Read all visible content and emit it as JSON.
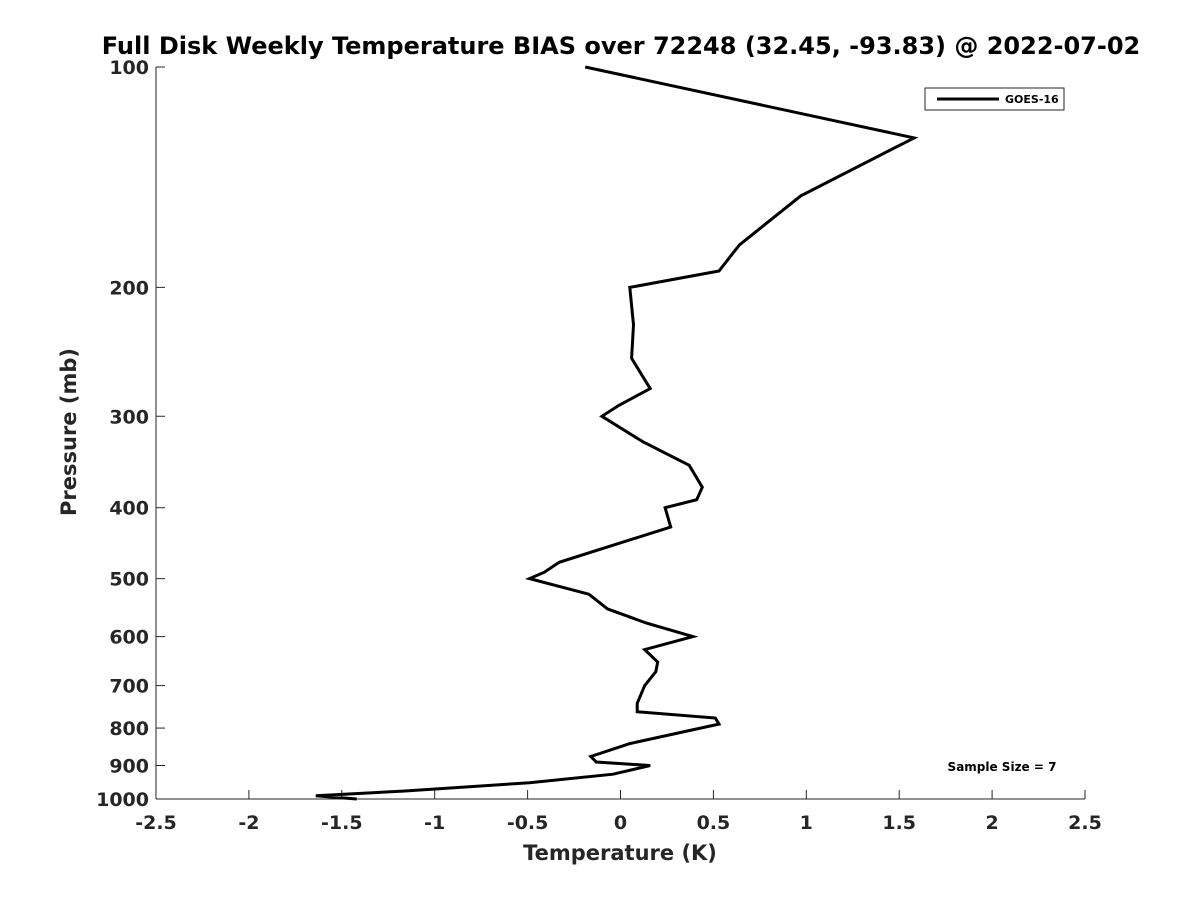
{
  "chart_data": {
    "type": "line",
    "title": "Full Disk Weekly Temperature BIAS over 72248 (32.45, -93.83) @ 2022-07-02",
    "xlabel": "Temperature (K)",
    "ylabel": "Pressure (mb)",
    "xlim": [
      -2.5,
      2.5
    ],
    "ylim": [
      100,
      1000
    ],
    "yscale": "log",
    "y_reversed": true,
    "grid": false,
    "legend_position": "top-right",
    "xticks": [
      {
        "value": -2.5,
        "label": "-2.5"
      },
      {
        "value": -2,
        "label": "-2"
      },
      {
        "value": -1.5,
        "label": "-1.5"
      },
      {
        "value": -1,
        "label": "-1"
      },
      {
        "value": -0.5,
        "label": "-0.5"
      },
      {
        "value": 0,
        "label": "0"
      },
      {
        "value": 0.5,
        "label": "0.5"
      },
      {
        "value": 1,
        "label": "1"
      },
      {
        "value": 1.5,
        "label": "1.5"
      },
      {
        "value": 2,
        "label": "2"
      },
      {
        "value": 2.5,
        "label": "2.5"
      }
    ],
    "yticks": [
      {
        "value": 100,
        "label": "100"
      },
      {
        "value": 200,
        "label": "200"
      },
      {
        "value": 300,
        "label": "300"
      },
      {
        "value": 400,
        "label": "400"
      },
      {
        "value": 500,
        "label": "500"
      },
      {
        "value": 600,
        "label": "600"
      },
      {
        "value": 700,
        "label": "700"
      },
      {
        "value": 800,
        "label": "800"
      },
      {
        "value": 900,
        "label": "900"
      },
      {
        "value": 1000,
        "label": "1000"
      }
    ],
    "series": [
      {
        "name": "GOES-16",
        "color": "#000000",
        "points": [
          {
            "x": -0.19,
            "p": 100
          },
          {
            "x": 1.58,
            "p": 125
          },
          {
            "x": 0.97,
            "p": 150
          },
          {
            "x": 0.64,
            "p": 175
          },
          {
            "x": 0.53,
            "p": 190
          },
          {
            "x": 0.05,
            "p": 200
          },
          {
            "x": 0.07,
            "p": 225
          },
          {
            "x": 0.06,
            "p": 250
          },
          {
            "x": 0.16,
            "p": 275
          },
          {
            "x": -0.01,
            "p": 290
          },
          {
            "x": -0.1,
            "p": 300
          },
          {
            "x": 0.12,
            "p": 325
          },
          {
            "x": 0.37,
            "p": 350
          },
          {
            "x": 0.44,
            "p": 375
          },
          {
            "x": 0.41,
            "p": 390
          },
          {
            "x": 0.24,
            "p": 400
          },
          {
            "x": 0.27,
            "p": 425
          },
          {
            "x": -0.33,
            "p": 475
          },
          {
            "x": -0.41,
            "p": 490
          },
          {
            "x": -0.49,
            "p": 500
          },
          {
            "x": -0.17,
            "p": 525
          },
          {
            "x": -0.07,
            "p": 550
          },
          {
            "x": 0.14,
            "p": 575
          },
          {
            "x": 0.39,
            "p": 600
          },
          {
            "x": 0.13,
            "p": 625
          },
          {
            "x": 0.2,
            "p": 650
          },
          {
            "x": 0.19,
            "p": 670
          },
          {
            "x": 0.13,
            "p": 700
          },
          {
            "x": 0.09,
            "p": 740
          },
          {
            "x": 0.09,
            "p": 760
          },
          {
            "x": 0.51,
            "p": 775
          },
          {
            "x": 0.53,
            "p": 790
          },
          {
            "x": 0.43,
            "p": 800
          },
          {
            "x": 0.05,
            "p": 840
          },
          {
            "x": -0.16,
            "p": 875
          },
          {
            "x": -0.13,
            "p": 890
          },
          {
            "x": 0.16,
            "p": 900
          },
          {
            "x": -0.04,
            "p": 925
          },
          {
            "x": -0.49,
            "p": 950
          },
          {
            "x": -1.16,
            "p": 975
          },
          {
            "x": -1.64,
            "p": 990
          },
          {
            "x": -1.42,
            "p": 1000
          }
        ]
      }
    ],
    "annotations": [
      {
        "text": "Sample Size = 7",
        "position": "bottom-right"
      }
    ]
  }
}
